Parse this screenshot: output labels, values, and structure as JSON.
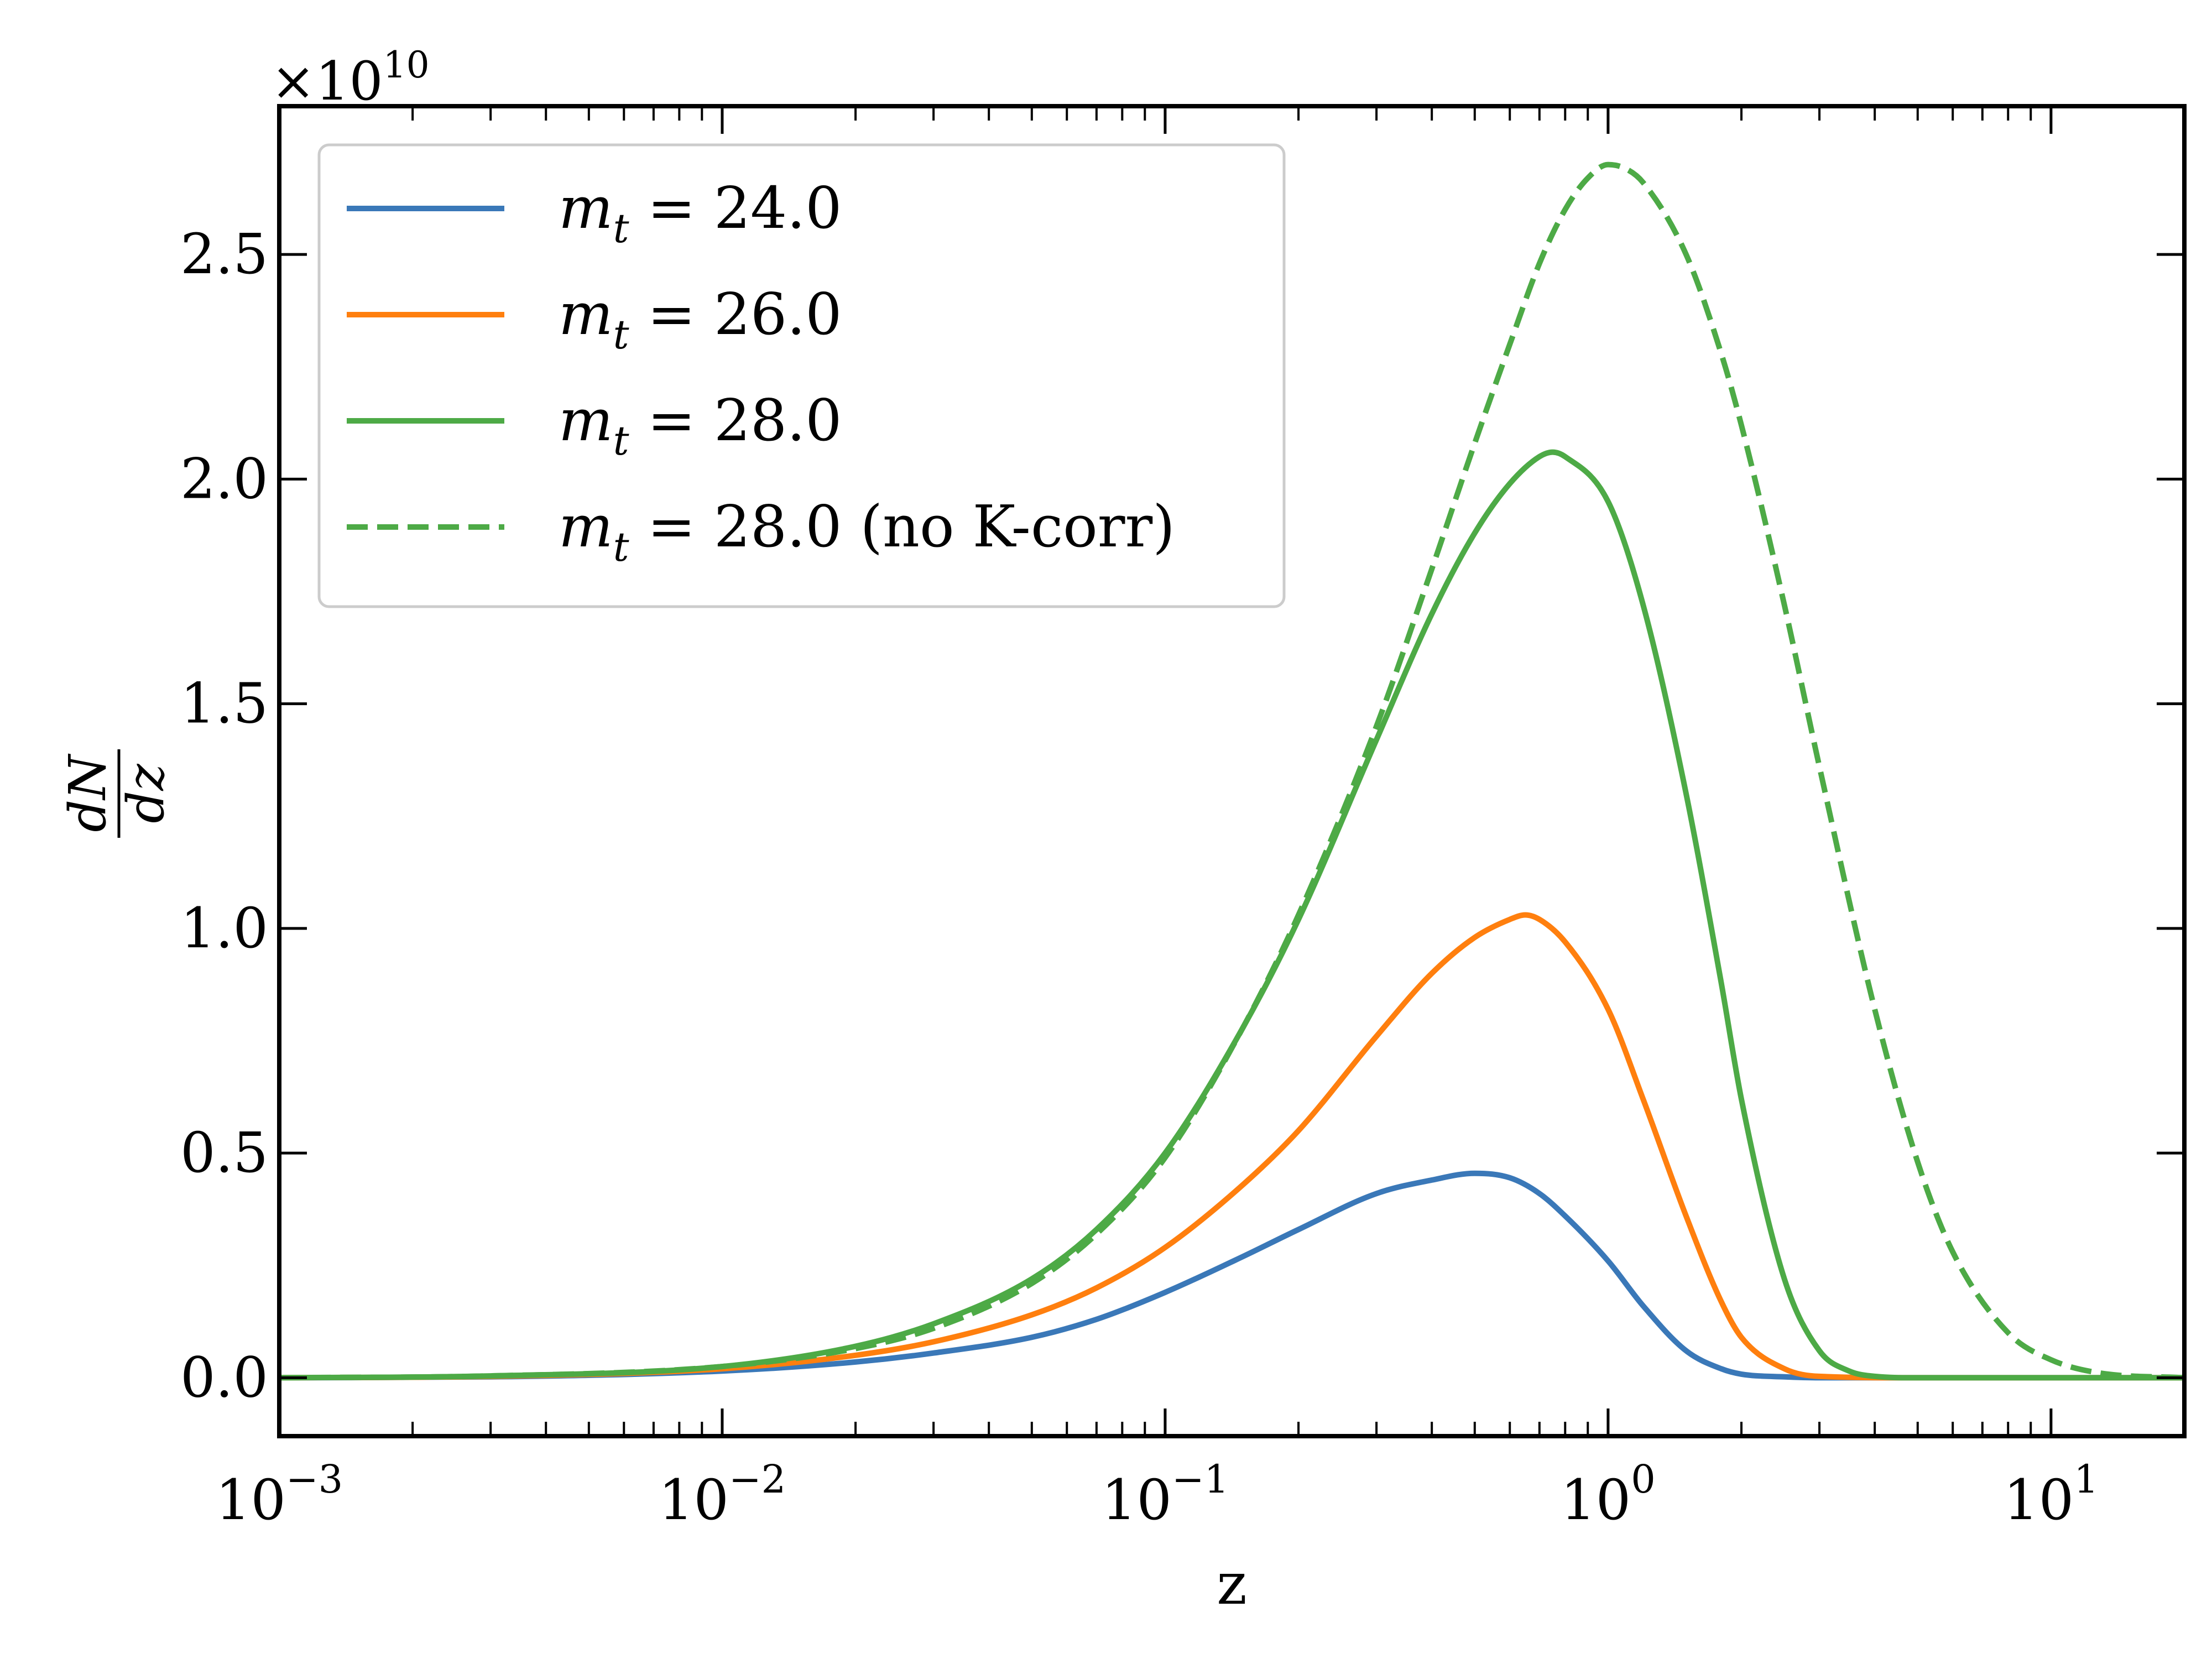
{
  "chart_data": {
    "type": "line",
    "title": "",
    "xlabel": "z",
    "ylabel_numerator": "dN",
    "ylabel_denominator": "dz",
    "xscale": "log",
    "xlim": [
      0.001,
      20
    ],
    "ylim": [
      -0.13,
      2.83
    ],
    "y_multiplier": "×10",
    "y_multiplier_exp": "10",
    "x_ticks": [
      {
        "value": 0.001,
        "base": "10",
        "exp": "−3"
      },
      {
        "value": 0.01,
        "base": "10",
        "exp": "−2"
      },
      {
        "value": 0.1,
        "base": "10",
        "exp": "−1"
      },
      {
        "value": 1,
        "base": "10",
        "exp": "0"
      },
      {
        "value": 10,
        "base": "10",
        "exp": "1"
      }
    ],
    "y_ticks": [
      {
        "value": 0.0,
        "label": "0.0"
      },
      {
        "value": 0.5,
        "label": "0.5"
      },
      {
        "value": 1.0,
        "label": "1.0"
      },
      {
        "value": 1.5,
        "label": "1.5"
      },
      {
        "value": 2.0,
        "label": "2.0"
      },
      {
        "value": 2.5,
        "label": "2.5"
      }
    ],
    "legend_position": "top-left",
    "series": [
      {
        "name": "m_t = 24.0",
        "label_var": "m",
        "label_sub": "t",
        "label_rest": " = 24.0",
        "color": "#3a78b8",
        "dash": "solid",
        "x": [
          0.001,
          0.003,
          0.01,
          0.02,
          0.03,
          0.05,
          0.07,
          0.1,
          0.15,
          0.2,
          0.3,
          0.4,
          0.5,
          0.6,
          0.7,
          0.8,
          1.0,
          1.2,
          1.5,
          1.8,
          2.0,
          2.5,
          3,
          5,
          20
        ],
        "values": [
          0.0,
          0.002,
          0.015,
          0.035,
          0.055,
          0.09,
          0.13,
          0.19,
          0.27,
          0.33,
          0.41,
          0.44,
          0.455,
          0.445,
          0.41,
          0.36,
          0.26,
          0.16,
          0.06,
          0.02,
          0.008,
          0.002,
          0.0,
          0.0,
          0.0
        ]
      },
      {
        "name": "m_t = 26.0",
        "label_var": "m",
        "label_sub": "t",
        "label_rest": " = 26.0",
        "color": "#ff7f0e",
        "dash": "solid",
        "x": [
          0.001,
          0.003,
          0.01,
          0.02,
          0.03,
          0.05,
          0.07,
          0.1,
          0.15,
          0.2,
          0.3,
          0.4,
          0.5,
          0.6,
          0.65,
          0.7,
          0.8,
          1.0,
          1.2,
          1.5,
          1.8,
          2.0,
          2.5,
          3,
          5,
          20
        ],
        "values": [
          0.0,
          0.003,
          0.02,
          0.05,
          0.08,
          0.14,
          0.2,
          0.29,
          0.43,
          0.55,
          0.76,
          0.9,
          0.98,
          1.02,
          1.03,
          1.02,
          0.97,
          0.82,
          0.62,
          0.36,
          0.17,
          0.09,
          0.02,
          0.003,
          0.0,
          0.0
        ]
      },
      {
        "name": "m_t = 28.0",
        "label_var": "m",
        "label_sub": "t",
        "label_rest": " = 28.0",
        "color": "#4daa46",
        "dash": "solid",
        "x": [
          0.001,
          0.003,
          0.01,
          0.02,
          0.03,
          0.05,
          0.07,
          0.1,
          0.15,
          0.2,
          0.3,
          0.4,
          0.5,
          0.6,
          0.7,
          0.75,
          0.8,
          1.0,
          1.2,
          1.5,
          1.8,
          2.0,
          2.5,
          3,
          3.5,
          4,
          5,
          20
        ],
        "values": [
          0.0,
          0.004,
          0.025,
          0.07,
          0.12,
          0.22,
          0.33,
          0.5,
          0.78,
          1.02,
          1.42,
          1.7,
          1.88,
          1.99,
          2.05,
          2.06,
          2.05,
          1.95,
          1.72,
          1.3,
          0.88,
          0.62,
          0.22,
          0.06,
          0.015,
          0.003,
          0.0,
          0.0
        ]
      },
      {
        "name": "m_t = 28.0 (no K-corr)",
        "label_var": "m",
        "label_sub": "t",
        "label_rest": " = 28.0 (no K-corr)",
        "color": "#4daa46",
        "dash": "dashed",
        "x": [
          0.001,
          0.003,
          0.01,
          0.02,
          0.03,
          0.05,
          0.07,
          0.1,
          0.15,
          0.2,
          0.3,
          0.4,
          0.5,
          0.6,
          0.7,
          0.8,
          0.9,
          1.0,
          1.1,
          1.2,
          1.5,
          1.8,
          2.0,
          2.5,
          3,
          4,
          5,
          6,
          8,
          10,
          13,
          20
        ],
        "values": [
          0.0,
          0.004,
          0.025,
          0.065,
          0.11,
          0.21,
          0.32,
          0.49,
          0.78,
          1.03,
          1.45,
          1.8,
          2.08,
          2.3,
          2.48,
          2.6,
          2.67,
          2.7,
          2.69,
          2.66,
          2.5,
          2.28,
          2.12,
          1.72,
          1.36,
          0.82,
          0.48,
          0.28,
          0.1,
          0.04,
          0.01,
          0.0
        ]
      }
    ]
  }
}
